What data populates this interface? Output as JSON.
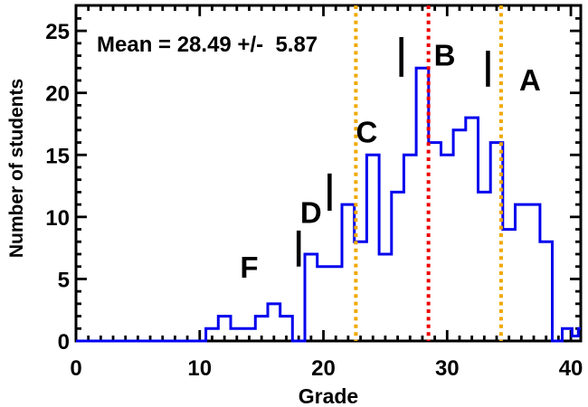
{
  "annotation": {
    "mean_text": "Mean = 28.49 +/-  5.87",
    "mean_value": 28.49,
    "sigma_value": 5.87
  },
  "axes": {
    "xlabel": "Grade",
    "ylabel": "Number of students",
    "x_major_ticks": [
      0,
      10,
      20,
      30,
      40
    ],
    "y_major_ticks": [
      0,
      5,
      10,
      15,
      20,
      25
    ],
    "x_range": [
      0,
      40.8
    ],
    "y_range": [
      0,
      27.05
    ],
    "minor_tick_step": 1,
    "grid": false
  },
  "colors": {
    "histogram": "#0000ee",
    "mean_line": "#ee0000",
    "sigma_line": "#f0a800",
    "axis": "#000000",
    "background": "#ffffff",
    "text": "#000000"
  },
  "chart_data": {
    "type": "bar",
    "subtype": "step-histogram",
    "title": "Mean = 28.49 +/- 5.87",
    "xlabel": "Grade",
    "ylabel": "Number of students",
    "bin_width": 1,
    "bin_center_first": 1,
    "counts": [
      0,
      0,
      0,
      0,
      0,
      0,
      0,
      0,
      0,
      0,
      1,
      2,
      1,
      1,
      2,
      3,
      2,
      0,
      7,
      6,
      6,
      11,
      8,
      15,
      7,
      12,
      15,
      22,
      16,
      15,
      17,
      18,
      12,
      16,
      9,
      11,
      11,
      8,
      0,
      1
    ],
    "steps": [
      [
        0,
        0
      ],
      [
        10.5,
        1
      ],
      [
        11.5,
        2
      ],
      [
        12.5,
        1
      ],
      [
        14.5,
        2
      ],
      [
        15.5,
        3
      ],
      [
        16.5,
        2
      ],
      [
        17.5,
        0
      ],
      [
        18.5,
        7
      ],
      [
        19.5,
        6
      ],
      [
        21.5,
        11
      ],
      [
        22.5,
        8
      ],
      [
        23.5,
        15
      ],
      [
        24.5,
        7
      ],
      [
        25.5,
        12
      ],
      [
        26.5,
        15
      ],
      [
        27.5,
        22
      ],
      [
        28.5,
        16
      ],
      [
        29.5,
        15
      ],
      [
        30.5,
        17
      ],
      [
        31.5,
        18
      ],
      [
        32.5,
        12
      ],
      [
        33.5,
        16
      ],
      [
        34.5,
        9
      ],
      [
        35.5,
        11
      ],
      [
        37.5,
        8
      ],
      [
        38.5,
        0
      ],
      [
        39.3,
        1
      ],
      [
        40.1,
        0.4
      ],
      [
        40.6,
        1
      ]
    ],
    "x_end": 40.8,
    "mean": 28.49,
    "sigma": 5.87,
    "vlines": [
      {
        "name": "mean-minus-sigma",
        "x": 22.62,
        "color": "#f0a800",
        "style": "dotted"
      },
      {
        "name": "mean",
        "x": 28.49,
        "color": "#ee0000",
        "style": "dotted"
      },
      {
        "name": "mean-plus-sigma",
        "x": 34.36,
        "color": "#f0a800",
        "style": "dotted"
      }
    ],
    "grade_letters": [
      {
        "label": "F",
        "x": 14.0,
        "y": 5.1
      },
      {
        "label": "D",
        "x": 19.0,
        "y": 9.5
      },
      {
        "label": "C",
        "x": 23.5,
        "y": 16.0
      },
      {
        "label": "B",
        "x": 29.8,
        "y": 22.2
      },
      {
        "label": "A",
        "x": 36.7,
        "y": 20.2
      }
    ],
    "boundary_markers": [
      {
        "x": 18.0,
        "y1": 6.0,
        "y2": 8.9
      },
      {
        "x": 20.5,
        "y1": 10.5,
        "y2": 13.5
      },
      {
        "x": 26.3,
        "y1": 21.3,
        "y2": 24.5
      },
      {
        "x": 33.3,
        "y1": 20.5,
        "y2": 23.4
      }
    ]
  }
}
